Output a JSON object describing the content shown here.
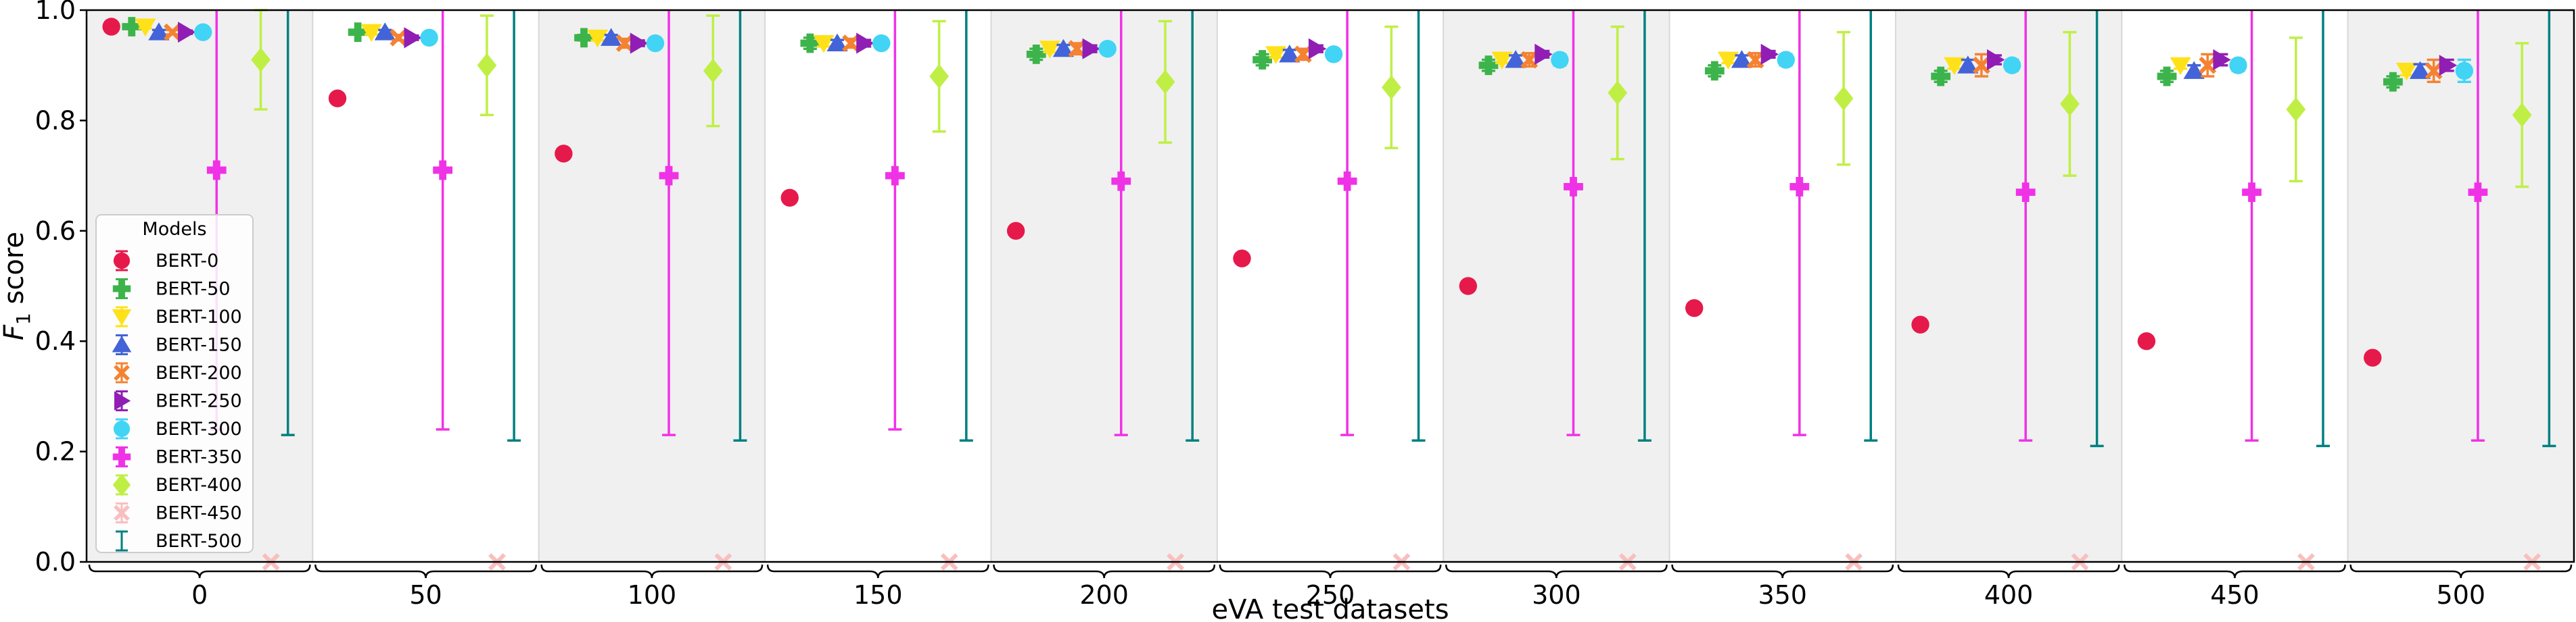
{
  "chart_data": {
    "type": "scatter",
    "xlabel": "eVA test datasets",
    "ylabel": "F",
    "ylabel_sub": "1",
    "ylabel_rest": " score",
    "ylim": [
      0,
      1
    ],
    "yticks": [
      "0.0",
      "0.2",
      "0.4",
      "0.6",
      "0.8",
      "1.0"
    ],
    "ytick_values": [
      0,
      0.2,
      0.4,
      0.6,
      0.8,
      1.0
    ],
    "categories": [
      "0",
      "50",
      "100",
      "150",
      "200",
      "250",
      "300",
      "350",
      "400",
      "450",
      "500"
    ],
    "shaded_groups": [
      0,
      2,
      4,
      6,
      8,
      10
    ],
    "legend": {
      "title": "Models",
      "placement": "lower-left"
    },
    "series": [
      {
        "name": "BERT-0",
        "color": "#e6194b",
        "marker": "circle",
        "values": [
          0.97,
          0.84,
          0.74,
          0.66,
          0.6,
          0.55,
          0.5,
          0.46,
          0.43,
          0.4,
          0.37
        ],
        "errors": [
          0.003,
          0.003,
          0.003,
          0.003,
          0.003,
          0.003,
          0.003,
          0.003,
          0.003,
          0.003,
          0.003
        ]
      },
      {
        "name": "BERT-50",
        "color": "#3cb44b",
        "marker": "plus",
        "values": [
          0.97,
          0.96,
          0.95,
          0.94,
          0.92,
          0.91,
          0.9,
          0.89,
          0.88,
          0.88,
          0.87
        ],
        "errors": [
          0.003,
          0.004,
          0.005,
          0.01,
          0.01,
          0.01,
          0.01,
          0.01,
          0.01,
          0.01,
          0.01
        ]
      },
      {
        "name": "BERT-100",
        "color": "#ffe119",
        "marker": "triangle-down",
        "values": [
          0.97,
          0.96,
          0.95,
          0.94,
          0.93,
          0.92,
          0.91,
          0.91,
          0.9,
          0.9,
          0.89
        ],
        "errors": [
          0.003,
          0.004,
          0.005,
          0.006,
          0.006,
          0.006,
          0.006,
          0.006,
          0.006,
          0.006,
          0.008
        ]
      },
      {
        "name": "BERT-150",
        "color": "#4363d8",
        "marker": "triangle-up",
        "values": [
          0.96,
          0.96,
          0.95,
          0.94,
          0.93,
          0.92,
          0.91,
          0.91,
          0.9,
          0.89,
          0.89
        ],
        "errors": [
          0.004,
          0.004,
          0.005,
          0.006,
          0.007,
          0.008,
          0.008,
          0.008,
          0.01,
          0.01,
          0.012
        ]
      },
      {
        "name": "BERT-200",
        "color": "#f58231",
        "marker": "x",
        "values": [
          0.96,
          0.95,
          0.94,
          0.94,
          0.93,
          0.92,
          0.91,
          0.91,
          0.9,
          0.9,
          0.89
        ],
        "errors": [
          0.004,
          0.005,
          0.008,
          0.008,
          0.01,
          0.01,
          0.012,
          0.012,
          0.02,
          0.02,
          0.02
        ]
      },
      {
        "name": "BERT-250",
        "color": "#911eb4",
        "marker": "triangle-right",
        "values": [
          0.96,
          0.95,
          0.94,
          0.94,
          0.93,
          0.93,
          0.92,
          0.92,
          0.91,
          0.91,
          0.9
        ],
        "errors": [
          0.003,
          0.004,
          0.005,
          0.006,
          0.006,
          0.006,
          0.006,
          0.006,
          0.008,
          0.01,
          0.01
        ]
      },
      {
        "name": "BERT-300",
        "color": "#42d4f4",
        "marker": "circle",
        "values": [
          0.96,
          0.95,
          0.94,
          0.94,
          0.93,
          0.92,
          0.91,
          0.91,
          0.9,
          0.9,
          0.89
        ],
        "errors": [
          0.004,
          0.005,
          0.008,
          0.008,
          0.008,
          0.008,
          0.01,
          0.01,
          0.01,
          0.01,
          0.02
        ]
      },
      {
        "name": "BERT-350",
        "color": "#f032e6",
        "marker": "plus",
        "values": [
          0.71,
          0.71,
          0.7,
          0.7,
          0.69,
          0.69,
          0.68,
          0.68,
          0.67,
          0.67,
          0.67
        ],
        "errors": [
          0.47,
          0.47,
          0.47,
          0.46,
          0.46,
          0.46,
          0.45,
          0.45,
          0.45,
          0.45,
          0.45
        ]
      },
      {
        "name": "BERT-400",
        "color": "#bfef45",
        "marker": "diamond",
        "values": [
          0.91,
          0.9,
          0.89,
          0.88,
          0.87,
          0.86,
          0.85,
          0.84,
          0.83,
          0.82,
          0.81
        ],
        "errors": [
          0.09,
          0.09,
          0.1,
          0.1,
          0.11,
          0.11,
          0.12,
          0.12,
          0.13,
          0.13,
          0.13
        ]
      },
      {
        "name": "BERT-450",
        "color": "#fabebe",
        "marker": "x",
        "values": [
          0.0,
          0.0,
          0.0,
          0.0,
          0.0,
          0.0,
          0.0,
          0.0,
          0.0,
          0.0,
          0.0
        ],
        "errors": [
          0,
          0,
          0,
          0,
          0,
          0,
          0,
          0,
          0,
          0,
          0
        ]
      },
      {
        "name": "BERT-500",
        "color": "#008080",
        "marker": "none",
        "values": [
          0.69,
          0.68,
          0.67,
          0.67,
          0.66,
          0.66,
          0.65,
          0.65,
          0.64,
          0.64,
          0.64
        ],
        "errors": [
          0.46,
          0.46,
          0.45,
          0.45,
          0.44,
          0.44,
          0.43,
          0.43,
          0.43,
          0.43,
          0.43
        ]
      }
    ]
  }
}
